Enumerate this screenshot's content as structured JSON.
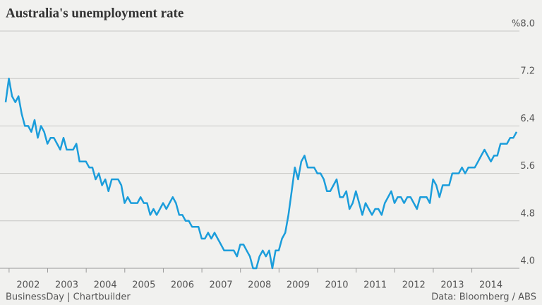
{
  "chart_data": {
    "type": "line",
    "title": "Australia's unemployment rate",
    "source": "Data: Bloomberg / ABS",
    "credit": "BusinessDay | Chartbuilder",
    "categories": [
      null,
      null,
      null,
      null,
      null,
      null,
      null,
      "2002",
      null,
      null,
      null,
      null,
      null,
      null,
      null,
      null,
      null,
      null,
      null,
      "2003",
      null,
      null,
      null,
      null,
      null,
      null,
      null,
      null,
      null,
      null,
      null,
      "2004",
      null,
      null,
      null,
      null,
      null,
      null,
      null,
      null,
      null,
      null,
      null,
      "2005",
      null,
      null,
      null,
      null,
      null,
      null,
      null,
      null,
      null,
      null,
      null,
      "2006",
      null,
      null,
      null,
      null,
      null,
      null,
      null,
      null,
      null,
      null,
      null,
      "2007",
      null,
      null,
      null,
      null,
      null,
      null,
      null,
      null,
      null,
      null,
      null,
      "2008",
      null,
      null,
      null,
      null,
      null,
      null,
      null,
      null,
      null,
      null,
      null,
      "2009",
      null,
      null,
      null,
      null,
      null,
      null,
      null,
      null,
      null,
      null,
      null,
      "2010",
      null,
      null,
      null,
      null,
      null,
      null,
      null,
      null,
      null,
      null,
      null,
      "2011",
      null,
      null,
      null,
      null,
      null,
      null,
      null,
      null,
      null,
      null,
      null,
      "2012",
      null,
      null,
      null,
      null,
      null,
      null,
      null,
      null,
      null,
      null,
      null,
      "2013",
      null,
      null,
      null,
      null,
      null,
      null,
      null,
      null,
      null,
      null,
      null,
      "2014",
      null,
      null,
      null,
      null,
      null,
      null,
      null,
      null
    ],
    "series": [
      {
        "name": "Unemployment rate",
        "color": "#1b9ddb",
        "values": [
          6.8,
          7.2,
          6.9,
          6.8,
          6.9,
          6.6,
          6.4,
          6.4,
          6.3,
          6.5,
          6.2,
          6.4,
          6.3,
          6.1,
          6.2,
          6.2,
          6.1,
          6.0,
          6.2,
          6.0,
          6.0,
          6.0,
          6.1,
          5.8,
          5.8,
          5.8,
          5.7,
          5.7,
          5.5,
          5.6,
          5.4,
          5.5,
          5.3,
          5.5,
          5.5,
          5.5,
          5.4,
          5.1,
          5.2,
          5.1,
          5.1,
          5.1,
          5.2,
          5.1,
          5.1,
          4.9,
          5.0,
          4.9,
          5.0,
          5.1,
          5.0,
          5.1,
          5.2,
          5.1,
          4.9,
          4.9,
          4.8,
          4.8,
          4.7,
          4.7,
          4.7,
          4.5,
          4.5,
          4.6,
          4.5,
          4.6,
          4.5,
          4.4,
          4.3,
          4.3,
          4.3,
          4.3,
          4.2,
          4.4,
          4.4,
          4.3,
          4.2,
          4.0,
          4.0,
          4.2,
          4.3,
          4.2,
          4.3,
          4.0,
          4.3,
          4.3,
          4.5,
          4.6,
          4.9,
          5.3,
          5.7,
          5.5,
          5.8,
          5.9,
          5.7,
          5.7,
          5.7,
          5.6,
          5.6,
          5.5,
          5.3,
          5.3,
          5.4,
          5.5,
          5.2,
          5.2,
          5.3,
          5.0,
          5.1,
          5.3,
          5.1,
          4.9,
          5.1,
          5.0,
          4.9,
          5.0,
          5.0,
          4.9,
          5.1,
          5.2,
          5.3,
          5.1,
          5.2,
          5.2,
          5.1,
          5.2,
          5.2,
          5.1,
          5.0,
          5.2,
          5.2,
          5.2,
          5.1,
          5.5,
          5.4,
          5.2,
          5.4,
          5.4,
          5.4,
          5.6,
          5.6,
          5.6,
          5.7,
          5.6,
          5.7,
          5.7,
          5.7,
          5.8,
          5.9,
          6.0,
          5.9,
          5.8,
          5.9,
          5.9,
          6.1,
          6.1,
          6.1,
          6.2,
          6.2,
          6.3
        ]
      }
    ],
    "ylim": [
      4.0,
      8.0
    ],
    "yticks": [
      {
        "value": 4.0,
        "label": "4.0"
      },
      4.8,
      5.6,
      6.4,
      7.2,
      {
        "value": 8.0,
        "label": "%8.0"
      }
    ],
    "grid": true
  }
}
